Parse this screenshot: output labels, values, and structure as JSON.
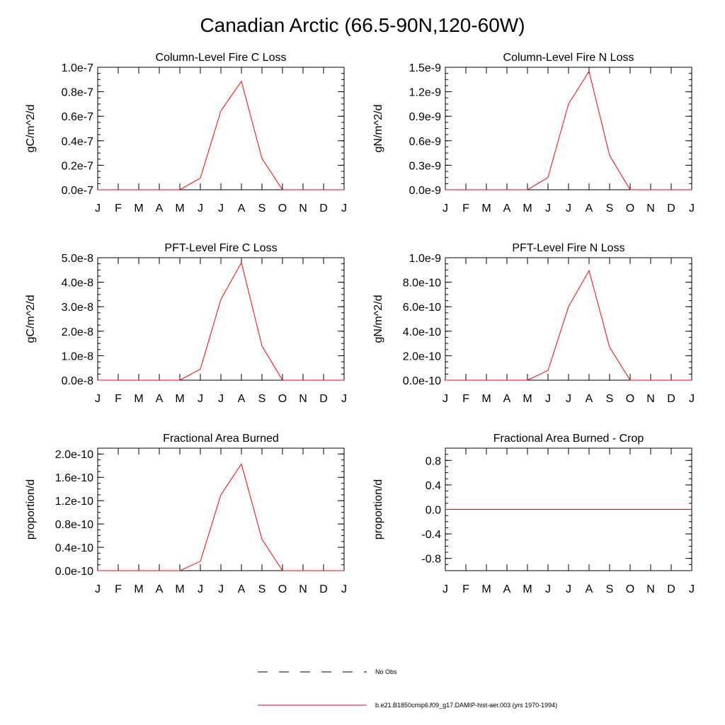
{
  "page_title": "Canadian Arctic (66.5-90N,120-60W)",
  "months": [
    "J",
    "F",
    "M",
    "A",
    "M",
    "J",
    "J",
    "A",
    "S",
    "O",
    "N",
    "D",
    "J"
  ],
  "colors": {
    "series": "#ff0000",
    "axis": "#000000",
    "obs": "#000000"
  },
  "legend": {
    "obs_label": "No Obs",
    "model_label": "b.e21.B1850cmip6.f09_g17.DAMIP-hist-aer.003 (yrs 1970-1994)"
  },
  "chart_data": [
    {
      "type": "line",
      "title": "Column-Level Fire C Loss",
      "ylabel": "gC/m^2/d",
      "ylim": [
        0,
        1e-07
      ],
      "yticks": [
        0,
        2e-08,
        4e-08,
        6e-08,
        8e-08,
        1e-07
      ],
      "ytick_labels": [
        "0.0e-7",
        "0.2e-7",
        "0.4e-7",
        "0.6e-7",
        "0.8e-7",
        "1.0e-7"
      ],
      "series": [
        {
          "values": [
            0,
            0,
            0,
            0,
            0,
            9.5e-09,
            6.45e-08,
            8.85e-08,
            2.55e-08,
            0,
            0,
            0,
            0
          ]
        }
      ]
    },
    {
      "type": "line",
      "title": "Column-Level Fire N Loss",
      "ylabel": "gN/m^2/d",
      "ylim": [
        0,
        1.5e-09
      ],
      "yticks": [
        0,
        3e-10,
        6e-10,
        9e-10,
        1.2e-09,
        1.5e-09
      ],
      "ytick_labels": [
        "0.0e-9",
        "0.3e-9",
        "0.6e-9",
        "0.9e-9",
        "1.2e-9",
        "1.5e-9"
      ],
      "series": [
        {
          "values": [
            0,
            0,
            0,
            0,
            0,
            1.5e-10,
            1.05e-09,
            1.45e-09,
            4.2e-10,
            0,
            0,
            0,
            0
          ]
        }
      ]
    },
    {
      "type": "line",
      "title": "PFT-Level Fire C Loss",
      "ylabel": "gC/m^2/d",
      "ylim": [
        0,
        5e-08
      ],
      "yticks": [
        0,
        1e-08,
        2e-08,
        3e-08,
        4e-08,
        5e-08
      ],
      "ytick_labels": [
        "0.0e-8",
        "1.0e-8",
        "2.0e-8",
        "3.0e-8",
        "4.0e-8",
        "5.0e-8"
      ],
      "series": [
        {
          "values": [
            0,
            0,
            0,
            0,
            0,
            4.5e-09,
            3.3e-08,
            4.8e-08,
            1.4e-08,
            0,
            0,
            0,
            0
          ]
        }
      ]
    },
    {
      "type": "line",
      "title": "PFT-Level Fire N Loss",
      "ylabel": "gN/m^2/d",
      "ylim": [
        0,
        1e-09
      ],
      "yticks": [
        0,
        2e-10,
        4e-10,
        6e-10,
        8e-10,
        1e-09
      ],
      "ytick_labels": [
        "0.0e-10",
        "2.0e-10",
        "4.0e-10",
        "6.0e-10",
        "8.0e-10",
        "1.0e-9"
      ],
      "series": [
        {
          "values": [
            0,
            0,
            0,
            0,
            0,
            8e-11,
            6e-10,
            8.95e-10,
            2.7e-10,
            0,
            0,
            0,
            0
          ]
        }
      ]
    },
    {
      "type": "line",
      "title": "Fractional Area Burned",
      "ylabel": "proportion/d",
      "ylim": [
        0,
        2.1e-10
      ],
      "yticks": [
        0,
        4e-11,
        8e-11,
        1.2e-10,
        1.6e-10,
        2e-10
      ],
      "ytick_labels": [
        "0.0e-10",
        "0.4e-10",
        "0.8e-10",
        "1.2e-10",
        "1.6e-10",
        "2.0e-10"
      ],
      "series": [
        {
          "values": [
            0,
            0,
            0,
            0,
            0,
            1.6e-11,
            1.3e-10,
            1.83e-10,
            5.4e-11,
            0,
            0,
            0,
            0
          ]
        }
      ]
    },
    {
      "type": "line",
      "title": "Fractional Area Burned - Crop",
      "ylabel": "proportion/d",
      "ylim": [
        -1.0,
        1.0
      ],
      "yticks": [
        -0.8,
        -0.4,
        0,
        0.4,
        0.8
      ],
      "ytick_labels": [
        "-0.8",
        "-0.4",
        "0.0",
        "0.4",
        "0.8"
      ],
      "series": [
        {
          "values": [
            0,
            0,
            0,
            0,
            0,
            0,
            0,
            0,
            0,
            0,
            0,
            0,
            0
          ]
        }
      ]
    }
  ]
}
